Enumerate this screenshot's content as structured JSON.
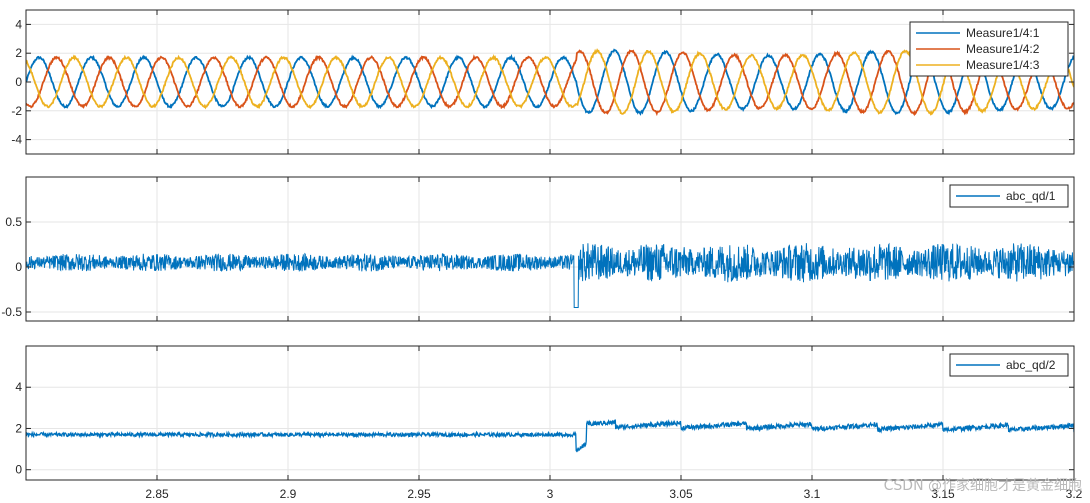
{
  "watermark": "CSDN @作家细胞才是黄金细胞",
  "chart_data": [
    {
      "type": "line",
      "title": "",
      "xlabel": "",
      "ylabel": "",
      "xlim": [
        2.8,
        3.2
      ],
      "ylim": [
        -5,
        5
      ],
      "yticks": [
        4,
        2,
        0,
        -2,
        -4
      ],
      "yticklabels": [
        "4",
        "2",
        "0",
        "-2",
        "-4"
      ],
      "grid": true,
      "legend_position": "top-right",
      "series": [
        {
          "name": "Measure1/4:1",
          "color": "#0072BD",
          "amplitude_before": 1.7,
          "amplitude_after": 2.0,
          "phase_deg": 0,
          "frequency_hz": 50
        },
        {
          "name": "Measure1/4:2",
          "color": "#D95319",
          "amplitude_before": 1.7,
          "amplitude_after": 2.0,
          "phase_deg": -120,
          "frequency_hz": 50
        },
        {
          "name": "Measure1/4:3",
          "color": "#EDB120",
          "amplitude_before": 1.7,
          "amplitude_after": 2.0,
          "phase_deg": 120,
          "frequency_hz": 50
        }
      ],
      "disturbance_time": 3.01
    },
    {
      "type": "line",
      "title": "",
      "xlabel": "",
      "ylabel": "",
      "xlim": [
        2.8,
        3.2
      ],
      "ylim": [
        -0.6,
        1.0
      ],
      "yticks": [
        0.5,
        0,
        -0.5
      ],
      "yticklabels": [
        "0.5",
        "0",
        "-0.5"
      ],
      "grid": true,
      "legend_position": "top-right",
      "series": [
        {
          "name": "abc_qd/1",
          "color": "#0072BD",
          "mean": 0.05,
          "band_before": 0.1,
          "band_after": 0.22
        }
      ],
      "disturbance_time": 3.01
    },
    {
      "type": "line",
      "title": "",
      "xlabel": "",
      "ylabel": "",
      "xlim": [
        2.8,
        3.2
      ],
      "ylim": [
        -0.5,
        6
      ],
      "yticks": [
        4,
        2,
        0
      ],
      "yticklabels": [
        "4",
        "2",
        "0"
      ],
      "xticks": [
        2.85,
        2.9,
        2.95,
        3.0,
        3.05,
        3.1,
        3.15,
        3.2
      ],
      "xticklabels": [
        "2.85",
        "2.9",
        "2.95",
        "3",
        "3.05",
        "3.1",
        "3.15",
        "3.2"
      ],
      "grid": true,
      "legend_position": "top-right",
      "series": [
        {
          "name": "abc_qd/2",
          "color": "#0072BD",
          "level_before": 1.7,
          "level_after": 1.95,
          "dip_at": 3.01,
          "dip_value": 0.9
        }
      ],
      "disturbance_time": 3.01
    }
  ]
}
